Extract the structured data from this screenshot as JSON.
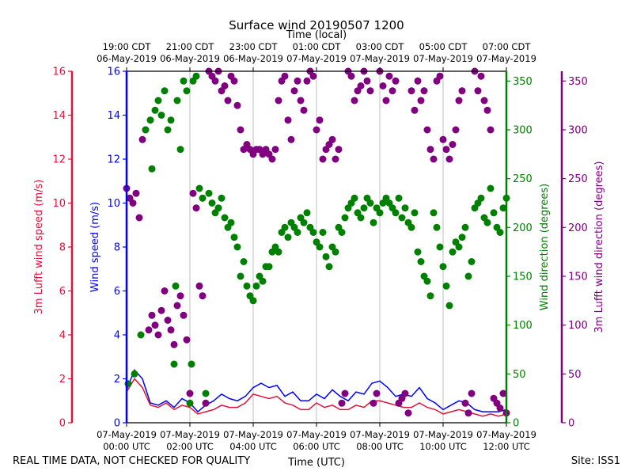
{
  "chart_data": {
    "type": "scatter",
    "title": "Surface wind 20190507 1200",
    "top_axis_label": "Time (local)",
    "xlabel": "Time (UTC)",
    "x_range_hours_utc": [
      0,
      12
    ],
    "bottom_ticks": [
      {
        "hour": 0,
        "line1": "07-May-2019",
        "line2": "00:00 UTC"
      },
      {
        "hour": 2,
        "line1": "07-May-2019",
        "line2": "02:00 UTC"
      },
      {
        "hour": 4,
        "line1": "07-May-2019",
        "line2": "04:00 UTC"
      },
      {
        "hour": 6,
        "line1": "07-May-2019",
        "line2": "06:00 UTC"
      },
      {
        "hour": 8,
        "line1": "07-May-2019",
        "line2": "08:00 UTC"
      },
      {
        "hour": 10,
        "line1": "07-May-2019",
        "line2": "10:00 UTC"
      },
      {
        "hour": 12,
        "line1": "07-May-2019",
        "line2": "12:00 UTC"
      }
    ],
    "top_ticks": [
      {
        "hour": 0,
        "line1": "19:00 CDT",
        "line2": "06-May-2019"
      },
      {
        "hour": 2,
        "line1": "21:00 CDT",
        "line2": "06-May-2019"
      },
      {
        "hour": 4,
        "line1": "23:00 CDT",
        "line2": "06-May-2019"
      },
      {
        "hour": 6,
        "line1": "01:00 CDT",
        "line2": "07-May-2019"
      },
      {
        "hour": 8,
        "line1": "03:00 CDT",
        "line2": "07-May-2019"
      },
      {
        "hour": 10,
        "line1": "05:00 CDT",
        "line2": "07-May-2019"
      },
      {
        "hour": 12,
        "line1": "07:00 CDT",
        "line2": "07-May-2019"
      }
    ],
    "axes": {
      "lufft_speed": {
        "label": "3m Lufft wind speed (m/s)",
        "color": "#dc143c",
        "ylim": [
          0,
          16
        ],
        "ticks": [
          0,
          2,
          4,
          6,
          8,
          10,
          12,
          14,
          16
        ]
      },
      "wind_speed": {
        "label": "Wind speed (m/s)",
        "color": "#0000ff",
        "ylim": [
          0,
          16
        ],
        "ticks": [
          0,
          2,
          4,
          6,
          8,
          10,
          12,
          14,
          16
        ]
      },
      "wind_direction": {
        "label": "Wind direction (degrees)",
        "color": "#008000",
        "ylim": [
          0,
          360
        ],
        "ticks": [
          0,
          50,
          100,
          150,
          200,
          250,
          300,
          350
        ]
      },
      "lufft_direction": {
        "label": "3m Lufft wind direction (degrees)",
        "color": "#800080",
        "ylim": [
          0,
          360
        ],
        "ticks": [
          0,
          50,
          100,
          150,
          200,
          250,
          300,
          350
        ]
      }
    },
    "series": [
      {
        "name": "Wind speed",
        "axis": "wind_speed",
        "kind": "line",
        "color": "#0000ff",
        "hours": [
          0,
          0.25,
          0.5,
          0.75,
          1,
          1.25,
          1.5,
          1.75,
          2,
          2.25,
          2.5,
          2.75,
          3,
          3.25,
          3.5,
          3.75,
          4,
          4.25,
          4.5,
          4.75,
          5,
          5.25,
          5.5,
          5.75,
          6,
          6.25,
          6.5,
          6.75,
          7,
          7.25,
          7.5,
          7.75,
          8,
          8.25,
          8.5,
          8.75,
          9,
          9.25,
          9.5,
          9.75,
          10,
          10.25,
          10.5,
          10.75,
          11,
          11.25,
          11.5,
          11.75,
          12
        ],
        "values": [
          1.5,
          2.4,
          2.0,
          0.9,
          0.8,
          1.0,
          0.7,
          1.1,
          0.9,
          0.5,
          0.8,
          1.0,
          1.3,
          1.1,
          1.0,
          1.2,
          1.6,
          1.8,
          1.6,
          1.7,
          1.2,
          1.4,
          1.0,
          1.0,
          1.3,
          1.1,
          1.5,
          1.2,
          1.0,
          1.4,
          1.3,
          1.8,
          1.9,
          1.6,
          1.2,
          1.3,
          1.2,
          1.6,
          1.1,
          0.9,
          0.6,
          0.8,
          1.0,
          0.9,
          0.6,
          0.5,
          0.5,
          0.5,
          0.6
        ]
      },
      {
        "name": "3m Lufft wind speed",
        "axis": "lufft_speed",
        "kind": "line",
        "color": "#dc143c",
        "hours": [
          0,
          0.25,
          0.5,
          0.75,
          1,
          1.25,
          1.5,
          1.75,
          2,
          2.25,
          2.5,
          2.75,
          3,
          3.25,
          3.5,
          3.75,
          4,
          4.25,
          4.5,
          4.75,
          5,
          5.25,
          5.5,
          5.75,
          6,
          6.25,
          6.5,
          6.75,
          7,
          7.25,
          7.5,
          7.75,
          8,
          8.25,
          8.5,
          8.75,
          9,
          9.25,
          9.5,
          9.75,
          10,
          10.25,
          10.5,
          10.75,
          11,
          11.25,
          11.5,
          11.75,
          12
        ],
        "values": [
          1.4,
          2.0,
          1.6,
          0.8,
          0.7,
          0.9,
          0.6,
          0.8,
          0.7,
          0.4,
          0.5,
          0.6,
          0.8,
          0.7,
          0.7,
          0.9,
          1.3,
          1.2,
          1.1,
          1.2,
          0.9,
          0.8,
          0.6,
          0.6,
          0.9,
          0.7,
          0.8,
          0.6,
          0.6,
          0.8,
          0.7,
          1.0,
          1.0,
          0.9,
          0.8,
          0.7,
          0.7,
          0.9,
          0.7,
          0.6,
          0.4,
          0.5,
          0.6,
          0.5,
          0.4,
          0.3,
          0.4,
          0.3,
          0.4
        ]
      },
      {
        "name": "Wind direction",
        "axis": "wind_direction",
        "kind": "scatter",
        "color": "#008000",
        "hours": [
          0.05,
          0.25,
          0.45,
          0.6,
          0.75,
          0.8,
          0.9,
          1.0,
          1.1,
          1.2,
          1.3,
          1.4,
          1.5,
          1.55,
          1.6,
          1.7,
          1.8,
          1.9,
          2.0,
          2.05,
          2.1,
          2.2,
          2.3,
          2.4,
          2.5,
          2.6,
          2.7,
          2.8,
          2.9,
          3.0,
          3.1,
          3.2,
          3.3,
          3.4,
          3.5,
          3.6,
          3.7,
          3.8,
          3.9,
          4.0,
          4.1,
          4.2,
          4.3,
          4.4,
          4.5,
          4.6,
          4.7,
          4.8,
          4.9,
          5.0,
          5.1,
          5.2,
          5.3,
          5.4,
          5.5,
          5.6,
          5.7,
          5.8,
          5.9,
          6.0,
          6.1,
          6.2,
          6.3,
          6.4,
          6.5,
          6.6,
          6.7,
          6.8,
          6.9,
          7.0,
          7.1,
          7.2,
          7.3,
          7.4,
          7.5,
          7.6,
          7.7,
          7.8,
          7.9,
          8.0,
          8.1,
          8.2,
          8.3,
          8.4,
          8.5,
          8.6,
          8.7,
          8.8,
          8.9,
          9.0,
          9.1,
          9.2,
          9.3,
          9.4,
          9.5,
          9.6,
          9.7,
          9.8,
          9.9,
          10.0,
          10.1,
          10.2,
          10.3,
          10.4,
          10.5,
          10.6,
          10.7,
          10.8,
          10.9,
          11.0,
          11.1,
          11.2,
          11.3,
          11.4,
          11.5,
          11.6,
          11.7,
          11.8,
          11.9,
          12.0
        ],
        "values": [
          40,
          50,
          90,
          300,
          310,
          260,
          320,
          330,
          315,
          340,
          300,
          310,
          60,
          140,
          330,
          280,
          350,
          340,
          20,
          60,
          350,
          355,
          240,
          230,
          30,
          235,
          225,
          215,
          220,
          230,
          210,
          200,
          205,
          190,
          180,
          150,
          165,
          140,
          130,
          125,
          140,
          150,
          145,
          160,
          160,
          175,
          180,
          175,
          195,
          200,
          190,
          205,
          200,
          195,
          210,
          205,
          215,
          200,
          195,
          185,
          180,
          195,
          170,
          160,
          180,
          175,
          200,
          195,
          210,
          220,
          225,
          230,
          215,
          210,
          220,
          230,
          225,
          205,
          220,
          215,
          225,
          230,
          225,
          220,
          215,
          230,
          210,
          220,
          205,
          200,
          215,
          175,
          165,
          150,
          145,
          130,
          215,
          200,
          180,
          160,
          140,
          120,
          175,
          185,
          180,
          190,
          200,
          150,
          165,
          220,
          225,
          230,
          210,
          205,
          240,
          215,
          200,
          195,
          220,
          230
        ]
      },
      {
        "name": "3m Lufft wind direction",
        "axis": "lufft_direction",
        "kind": "scatter",
        "color": "#800080",
        "hours": [
          0.0,
          0.1,
          0.2,
          0.3,
          0.4,
          0.5,
          0.6,
          0.7,
          0.8,
          0.9,
          1.0,
          1.1,
          1.2,
          1.3,
          1.4,
          1.5,
          1.6,
          1.7,
          1.8,
          1.9,
          2.0,
          2.1,
          2.2,
          2.3,
          2.4,
          2.5,
          2.6,
          2.7,
          2.8,
          2.9,
          3.0,
          3.1,
          3.2,
          3.3,
          3.4,
          3.5,
          3.6,
          3.7,
          3.8,
          3.9,
          4.0,
          4.1,
          4.2,
          4.3,
          4.4,
          4.5,
          4.6,
          4.7,
          4.8,
          4.9,
          5.0,
          5.1,
          5.2,
          5.3,
          5.4,
          5.5,
          5.6,
          5.7,
          5.8,
          5.9,
          6.0,
          6.1,
          6.2,
          6.3,
          6.4,
          6.5,
          6.6,
          6.7,
          6.8,
          6.9,
          7.0,
          7.1,
          7.2,
          7.3,
          7.4,
          7.5,
          7.6,
          7.7,
          7.8,
          7.9,
          8.0,
          8.1,
          8.2,
          8.3,
          8.4,
          8.5,
          8.6,
          8.7,
          8.8,
          8.9,
          9.0,
          9.1,
          9.2,
          9.3,
          9.4,
          9.5,
          9.6,
          9.7,
          9.8,
          9.9,
          10.0,
          10.1,
          10.2,
          10.3,
          10.4,
          10.5,
          10.6,
          10.7,
          10.8,
          10.9,
          11.0,
          11.1,
          11.2,
          11.3,
          11.4,
          11.5,
          11.6,
          11.7,
          11.8,
          11.9,
          12.0
        ],
        "values": [
          240,
          230,
          225,
          235,
          210,
          290,
          300,
          95,
          110,
          100,
          90,
          115,
          135,
          105,
          95,
          80,
          120,
          130,
          110,
          85,
          30,
          235,
          220,
          140,
          130,
          20,
          360,
          355,
          350,
          360,
          340,
          345,
          330,
          355,
          350,
          325,
          300,
          280,
          285,
          280,
          275,
          280,
          280,
          275,
          280,
          275,
          270,
          280,
          330,
          350,
          355,
          310,
          290,
          340,
          350,
          330,
          320,
          350,
          360,
          355,
          300,
          310,
          270,
          280,
          285,
          290,
          270,
          280,
          20,
          30,
          360,
          355,
          330,
          340,
          345,
          360,
          350,
          340,
          20,
          30,
          360,
          345,
          330,
          355,
          340,
          350,
          20,
          25,
          30,
          10,
          340,
          320,
          350,
          330,
          340,
          300,
          280,
          270,
          350,
          355,
          290,
          280,
          270,
          285,
          300,
          330,
          340,
          20,
          10,
          30,
          360,
          340,
          355,
          330,
          320,
          300,
          25,
          20,
          15,
          30,
          10
        ]
      }
    ]
  },
  "footer": {
    "left_note": "REAL TIME DATA, NOT CHECKED FOR QUALITY",
    "site": "Site: ISS1"
  }
}
